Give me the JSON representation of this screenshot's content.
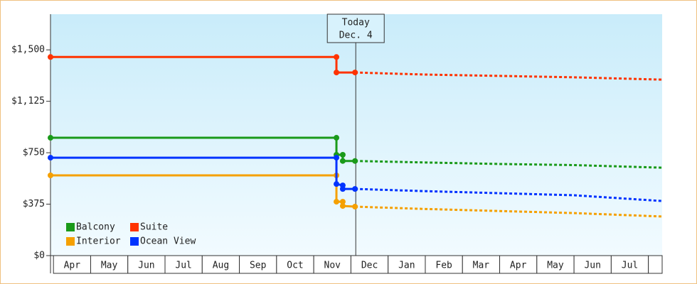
{
  "chart_data": {
    "type": "line",
    "categories": [
      "Apr",
      "May",
      "Jun",
      "Jul",
      "Aug",
      "Sep",
      "Oct",
      "Nov",
      "Dec",
      "Jan",
      "Feb",
      "Mar",
      "Apr",
      "May",
      "Jun",
      "Jul"
    ],
    "xlim": [
      -0.08,
      16.37
    ],
    "ylim": [
      0,
      1760
    ],
    "yticks": [
      {
        "value": 0,
        "label": "$0"
      },
      {
        "value": 375,
        "label": "$375"
      },
      {
        "value": 750,
        "label": "$750"
      },
      {
        "value": 1125,
        "label": "$1,125"
      },
      {
        "value": 1500,
        "label": "$1,500"
      }
    ],
    "annotation": {
      "x": 8.13,
      "lines": [
        "Today",
        "Dec. 4"
      ]
    },
    "legend": "lower left",
    "series": [
      {
        "name": "Balcony",
        "color": "#1a9a1a",
        "x": [
          -0.08,
          7.61,
          7.61,
          7.78,
          7.78,
          8.11,
          10,
          12,
          14,
          16.37
        ],
        "values": [
          859,
          859,
          735,
          735,
          690,
          690,
          679,
          668,
          660,
          641
        ]
      },
      {
        "name": "Suite",
        "color": "#ff3300",
        "x": [
          -0.08,
          7.61,
          7.61,
          8.11,
          10,
          12,
          14,
          16.37
        ],
        "values": [
          1448,
          1448,
          1335,
          1335,
          1320,
          1310,
          1300,
          1283
        ]
      },
      {
        "name": "Interior",
        "color": "#f5a000",
        "x": [
          -0.08,
          7.61,
          7.61,
          7.78,
          7.78,
          8.11,
          10,
          12,
          14,
          16.37
        ],
        "values": [
          585,
          585,
          393,
          393,
          362,
          357,
          340,
          325,
          310,
          285
        ]
      },
      {
        "name": "Ocean View",
        "color": "#0033ff",
        "x": [
          -0.08,
          7.61,
          7.61,
          7.78,
          7.78,
          8.11,
          10,
          12,
          14,
          16.37
        ],
        "values": [
          714,
          714,
          522,
          512,
          486,
          486,
          470,
          455,
          440,
          398
        ]
      }
    ]
  }
}
